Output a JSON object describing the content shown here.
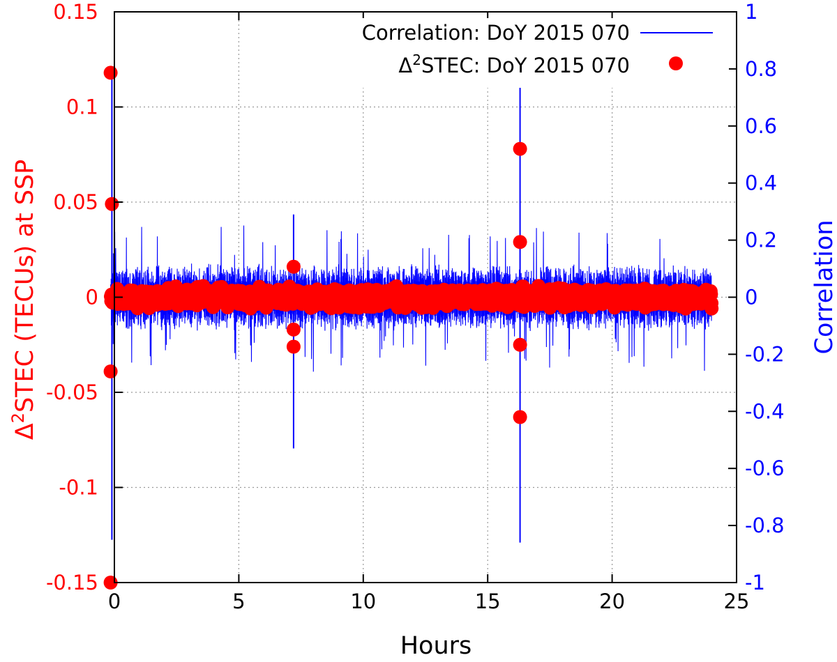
{
  "chart_data": {
    "type": "line",
    "xlabel": "Hours",
    "ylabel_left_prefix": "Δ",
    "ylabel_left_sup": "2",
    "ylabel_left_suffix": "STEC (TECUs) at SSP",
    "ylabel_right": "Correlation",
    "xlim": [
      0,
      25
    ],
    "ylim_left": [
      -0.15,
      0.15
    ],
    "ylim_right": [
      -1,
      1
    ],
    "x_ticks": [
      "0",
      "5",
      "10",
      "15",
      "20",
      "25"
    ],
    "y_left_ticks": [
      "-0.15",
      "-0.1",
      "-0.05",
      "0",
      "0.05",
      "0.1",
      "0.15"
    ],
    "y_right_ticks": [
      "-1",
      "-0.8",
      "-0.6",
      "-0.4",
      "-0.2",
      "0",
      "0.2",
      "0.4",
      "0.6",
      "0.8",
      "1"
    ],
    "grid": true,
    "legend_position": "top-right",
    "colors": {
      "correlation": "#0000ff",
      "d2stec": "#ff0000",
      "grid": "#999999"
    },
    "series": [
      {
        "name": "Correlation: DoY 2015 070",
        "axis": "right",
        "style": "line",
        "noise_band_typical": 0.1,
        "noise_band_max": 0.25,
        "spikes": [
          {
            "x": -0.1,
            "y_max": 0.8,
            "y_min": -0.85
          },
          {
            "x": 7.2,
            "y_max": 0.29,
            "y_min": -0.53
          },
          {
            "x": 16.3,
            "y_max": 0.85,
            "y_min": -0.86
          }
        ]
      },
      {
        "name_prefix": "Δ",
        "name_sup": "2",
        "name_suffix": "STEC: DoY 2015 070",
        "axis": "left",
        "style": "points",
        "baseline_band": 0.006,
        "outliers": [
          {
            "x": -0.15,
            "y": 0.118
          },
          {
            "x": -0.1,
            "y": 0.049
          },
          {
            "x": -0.15,
            "y": -0.039
          },
          {
            "x": -0.15,
            "y": -0.15
          },
          {
            "x": 7.2,
            "y": 0.016
          },
          {
            "x": 7.2,
            "y": -0.017
          },
          {
            "x": 7.2,
            "y": -0.026
          },
          {
            "x": 16.3,
            "y": 0.078
          },
          {
            "x": 16.3,
            "y": 0.029
          },
          {
            "x": 16.3,
            "y": -0.025
          },
          {
            "x": 16.3,
            "y": -0.063
          }
        ]
      }
    ]
  }
}
